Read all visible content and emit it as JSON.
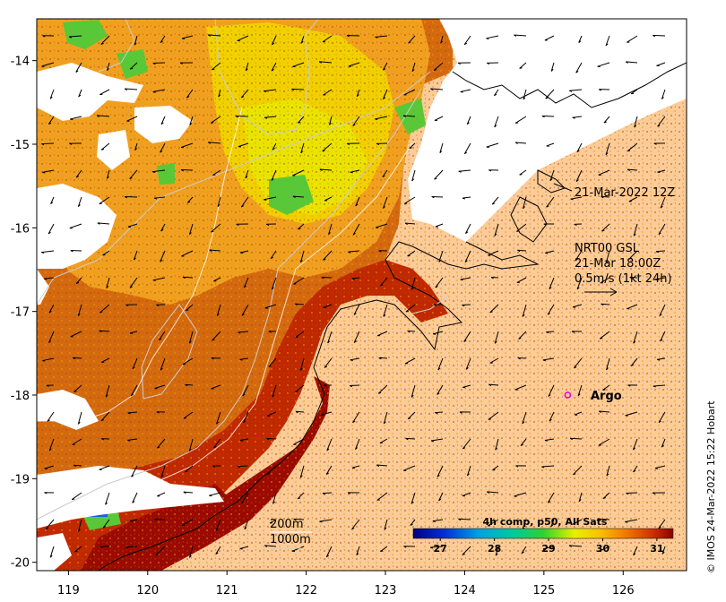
{
  "map": {
    "lon_range": [
      118.6,
      126.8
    ],
    "lat_range": [
      -20.1,
      -13.5
    ],
    "x_ticks": [
      "119",
      "120",
      "121",
      "122",
      "123",
      "124",
      "125",
      "126"
    ],
    "y_ticks": [
      "-14",
      "-15",
      "-16",
      "-17",
      "-18",
      "-19",
      "-20"
    ],
    "x_tick_values": [
      119,
      120,
      121,
      122,
      123,
      124,
      125,
      126
    ],
    "y_tick_values": [
      -14,
      -15,
      -16,
      -17,
      -18,
      -19,
      -20
    ]
  },
  "annotations": {
    "time_label": "21-Mar-2022 12Z",
    "current_source": "NRT00 GSL",
    "current_time": "21-Mar 18:00Z",
    "current_scale": "0.5m/s (1kt 24h)",
    "argo_label": "Argo",
    "contour_200": "200m",
    "contour_1000": "1000m",
    "credit": "© IMOS 24-Mar-2022 15:22 Hobart"
  },
  "argo_position": {
    "lon": 125.3,
    "lat": -18.0
  },
  "colorbar": {
    "title": "4h comp, p50, All Sats",
    "ticks": [
      "27",
      "28",
      "29",
      "30",
      "31"
    ],
    "range": [
      26.5,
      31.3
    ]
  },
  "colors": {
    "land": "#fbcb98",
    "sst_low": "#00008f",
    "sst_high": "#8b0000",
    "argo": "#e000e0"
  }
}
